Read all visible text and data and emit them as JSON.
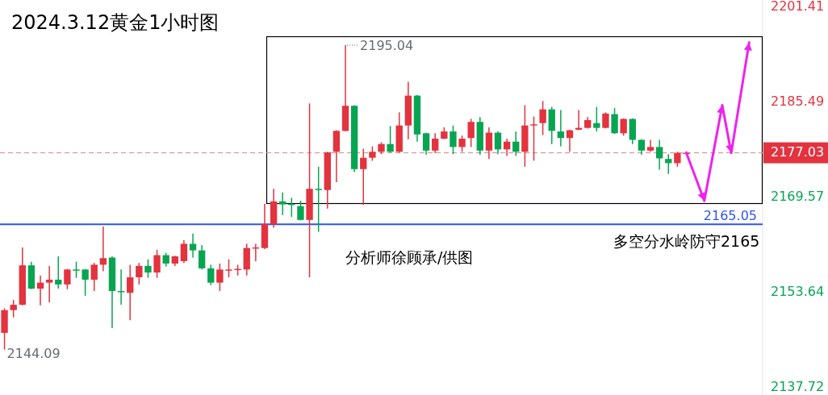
{
  "chart_data": {
    "type": "candlestick",
    "title": "2024.3.12黄金1小时图",
    "categories": [
      null,
      null,
      null,
      null,
      null,
      null,
      null,
      null,
      null,
      null,
      null,
      null,
      null,
      null,
      null,
      null,
      null,
      null,
      null,
      null,
      null,
      null,
      null,
      null,
      null,
      null,
      null,
      null,
      null,
      null,
      null,
      null,
      null,
      null,
      null,
      null,
      null,
      null,
      null,
      null,
      null,
      null,
      null,
      null,
      null,
      null,
      null,
      null,
      null,
      null,
      null,
      null,
      null,
      null,
      null,
      null,
      null,
      null,
      null,
      null,
      null,
      null,
      null,
      null,
      null,
      null,
      null,
      null,
      null,
      null,
      null,
      null,
      null,
      null,
      null,
      null,
      null,
      null,
      null,
      null,
      null,
      null,
      null,
      null,
      null
    ],
    "ohlc": [
      [
        2146.9,
        2151,
        2144.09,
        2150.7
      ],
      [
        2150.7,
        2152.4,
        2149.5,
        2151.6
      ],
      [
        2151.6,
        2161.2,
        2151.5,
        2158.2
      ],
      [
        2158.2,
        2158.8,
        2154.2,
        2154.3
      ],
      [
        2154.3,
        2156.5,
        2151.5,
        2155.3
      ],
      [
        2155.3,
        2158.1,
        2152,
        2155.8
      ],
      [
        2155.8,
        2159.7,
        2154.3,
        2155
      ],
      [
        2155,
        2157.6,
        2154.2,
        2157.5
      ],
      [
        2157.5,
        2158.8,
        2156.1,
        2157.4
      ],
      [
        2157.5,
        2157.6,
        2153.1,
        2155.8
      ],
      [
        2155.8,
        2158.6,
        2153.9,
        2158.3
      ],
      [
        2158.3,
        2164.7,
        2157.2,
        2159.4
      ],
      [
        2159.5,
        2159.7,
        2147.7,
        2153.9
      ],
      [
        2153.9,
        2157.5,
        2151.6,
        2153.8
      ],
      [
        2153.6,
        2158.3,
        2149,
        2156.2
      ],
      [
        2156.2,
        2158.6,
        2155,
        2158.1
      ],
      [
        2158.1,
        2159.2,
        2156.1,
        2157
      ],
      [
        2157,
        2160.8,
        2156.1,
        2159.9
      ],
      [
        2159.9,
        2160.3,
        2158,
        2158.5
      ],
      [
        2158.5,
        2159.8,
        2158.1,
        2159.7
      ],
      [
        2158.9,
        2162.4,
        2158.6,
        2161.8
      ],
      [
        2161.8,
        2163.5,
        2159.5,
        2160.7
      ],
      [
        2160.7,
        2161.6,
        2157.5,
        2157.7
      ],
      [
        2157.7,
        2158.3,
        2154.9,
        2155.3
      ],
      [
        2155.3,
        2158.5,
        2153.9,
        2157.5
      ],
      [
        2157.4,
        2159.2,
        2156.2,
        2157.5
      ],
      [
        2157.4,
        2158.3,
        2156.5,
        2157.6
      ],
      [
        2157.5,
        2161.8,
        2156.5,
        2161.1
      ],
      [
        2161.1,
        2161.8,
        2158.9,
        2161.2
      ],
      [
        2161.1,
        2168.5,
        2160.9,
        2165.1
      ],
      [
        2165.1,
        2171,
        2164.5,
        2168.9
      ],
      [
        2168.9,
        2170.4,
        2166.6,
        2168.4
      ],
      [
        2168.5,
        2169.5,
        2166.3,
        2168.3
      ],
      [
        2168.1,
        2169,
        2165.7,
        2165.8
      ],
      [
        2165.8,
        2185.3,
        2156.2,
        2171
      ],
      [
        2171,
        2174.7,
        2163.8,
        2170.9
      ],
      [
        2170.8,
        2177.2,
        2167.7,
        2177.1
      ],
      [
        2177.2,
        2180.8,
        2172.1,
        2180.7
      ],
      [
        2180.7,
        2195.04,
        2180.6,
        2184.9
      ],
      [
        2184.9,
        2185,
        2173.8,
        2174.3
      ],
      [
        2174.3,
        2177.7,
        2168.3,
        2176.2
      ],
      [
        2176.2,
        2178.1,
        2175.7,
        2177.2
      ],
      [
        2177.2,
        2178.8,
        2176.8,
        2178.5
      ],
      [
        2178.5,
        2181.5,
        2177.1,
        2177.2
      ],
      [
        2177.2,
        2183.8,
        2177.1,
        2181.6
      ],
      [
        2181.6,
        2188.9,
        2179.3,
        2186.6
      ],
      [
        2186.6,
        2186.7,
        2178.9,
        2180.1
      ],
      [
        2180.3,
        2180.4,
        2176.7,
        2177.4
      ],
      [
        2177.4,
        2180.3,
        2177,
        2179.4
      ],
      [
        2179.4,
        2181.3,
        2179.3,
        2180.6
      ],
      [
        2180.6,
        2181.6,
        2176.8,
        2178
      ],
      [
        2178,
        2179.9,
        2177.2,
        2179.4
      ],
      [
        2179.5,
        2182.7,
        2178,
        2182.2
      ],
      [
        2182.2,
        2183,
        2176.7,
        2177.4
      ],
      [
        2177.4,
        2181.3,
        2176,
        2180.4
      ],
      [
        2180.4,
        2180.6,
        2176.8,
        2177.6
      ],
      [
        2177.6,
        2179.4,
        2176.5,
        2178.9
      ],
      [
        2178.9,
        2180.6,
        2176.5,
        2177.2
      ],
      [
        2177.2,
        2185,
        2174.7,
        2181.6
      ],
      [
        2181.7,
        2183.1,
        2175.7,
        2181.8
      ],
      [
        2182,
        2185.7,
        2180,
        2184.3
      ],
      [
        2184.3,
        2184.7,
        2178.5,
        2180.7
      ],
      [
        2180.6,
        2184.2,
        2178.1,
        2179.5
      ],
      [
        2179.5,
        2180.9,
        2177.2,
        2180.8
      ],
      [
        2180.9,
        2184.2,
        2180.8,
        2181.2
      ],
      [
        2181.2,
        2183,
        2181.1,
        2182.5
      ],
      [
        2182,
        2184.7,
        2180.6,
        2181.2
      ],
      [
        2181.2,
        2183.8,
        2181.1,
        2183.6
      ],
      [
        2183.5,
        2184.5,
        2180.2,
        2180.3
      ],
      [
        2180.3,
        2182.8,
        2179.9,
        2182.7
      ],
      [
        2182.7,
        2182.8,
        2178.5,
        2179.2
      ],
      [
        2179.2,
        2179.3,
        2176.7,
        2177.4
      ],
      [
        2177.4,
        2179.2,
        2177.2,
        2178
      ],
      [
        2178,
        2179.2,
        2174.2,
        2176.1
      ],
      [
        2176,
        2176.8,
        2173.5,
        2175.3
      ],
      [
        2175.3,
        2177.2,
        2174.7,
        2177
      ],
      [
        2177,
        2177.3,
        2176.8,
        2177.03
      ],
      null,
      null,
      null,
      null,
      null,
      null,
      null,
      null
    ],
    "colors": [
      "#e2333f",
      "#e2333f",
      "#e2333f",
      "#07a552",
      "#e2333f",
      "#e2333f",
      "#07a552",
      "#e2333f",
      "#07a552",
      "#07a552",
      "#e2333f",
      "#e2333f",
      "#07a552",
      "#07a552",
      "#e2333f",
      "#e2333f",
      "#07a552",
      "#e2333f",
      "#07a552",
      "#e2333f",
      "#e2333f",
      "#07a552",
      "#07a552",
      "#07a552",
      "#e2333f",
      "#e2333f",
      "#e2333f",
      "#e2333f",
      "#e2333f",
      "#e2333f",
      "#e2333f",
      "#07a552",
      "#07a552",
      "#07a552",
      "#e2333f",
      "#07a552",
      "#e2333f",
      "#e2333f",
      "#e2333f",
      "#07a552",
      "#e2333f",
      "#e2333f",
      "#e2333f",
      "#07a552",
      "#e2333f",
      "#e2333f",
      "#07a552",
      "#07a552",
      "#e2333f",
      "#e2333f",
      "#07a552",
      "#e2333f",
      "#e2333f",
      "#07a552",
      "#e2333f",
      "#07a552",
      "#e2333f",
      "#07a552",
      "#e2333f",
      "#e2333f",
      "#e2333f",
      "#07a552",
      "#07a552",
      "#e2333f",
      "#e2333f",
      "#e2333f",
      "#07a552",
      "#e2333f",
      "#07a552",
      "#e2333f",
      "#07a552",
      "#07a552",
      "#e2333f",
      "#07a552",
      "#07a552",
      "#e2333f",
      "#e2333f",
      null,
      null,
      null,
      null,
      null,
      null,
      null,
      null
    ],
    "series": [
      {
        "type": "line",
        "color": "#ee22ee",
        "values": [
          null,
          null,
          null,
          null,
          null,
          null,
          null,
          null,
          null,
          null,
          null,
          null,
          null,
          null,
          null,
          null,
          null,
          null,
          null,
          null,
          null,
          null,
          null,
          null,
          null,
          null,
          null,
          null,
          null,
          null,
          null,
          null,
          null,
          null,
          null,
          null,
          null,
          null,
          null,
          null,
          null,
          null,
          null,
          null,
          null,
          null,
          null,
          null,
          null,
          null,
          null,
          null,
          null,
          null,
          null,
          null,
          null,
          null,
          null,
          null,
          null,
          null,
          null,
          null,
          null,
          null,
          null,
          null,
          null,
          null,
          null,
          null,
          null,
          null,
          null,
          null,
          2177.0,
          null,
          2169,
          null,
          2185,
          2177,
          null,
          2195.5,
          null
        ]
      }
    ],
    "ylim": [
      2136.5,
      2202.6
    ],
    "yticks": [
      2201.41,
      2185.49,
      2169.57,
      2153.64,
      2137.72
    ],
    "ref_lines": [
      {
        "axis": "y",
        "value": 2165.05,
        "label": "2165.05",
        "color": "#2f54eb",
        "line_style": "solid"
      },
      {
        "axis": "y",
        "value": 2177.03,
        "label": "2177.03",
        "color": "#e0838a",
        "line_style": "dashed"
      }
    ],
    "annotations": [
      "2195.04",
      "2144.09",
      "分析师徐顾承/供图",
      "多空分水岭防守2165"
    ],
    "grid": false
  }
}
